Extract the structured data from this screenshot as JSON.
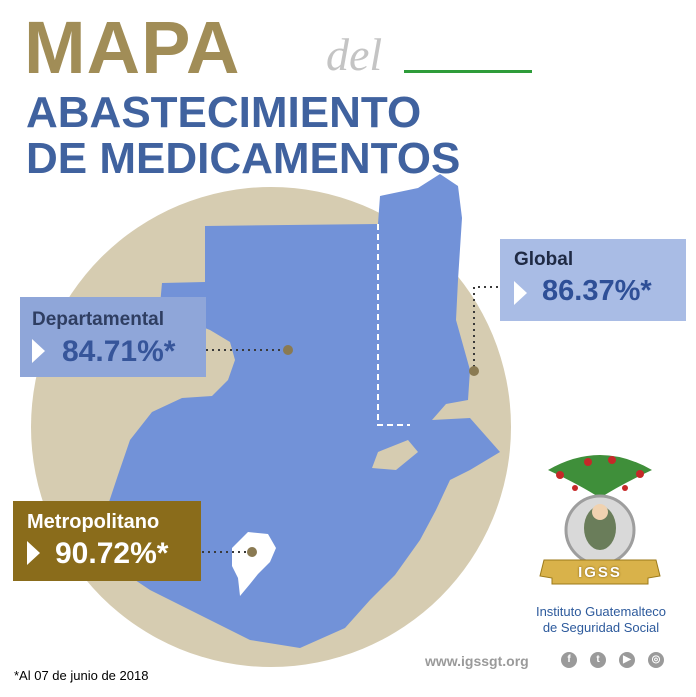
{
  "title": {
    "mapa": "MAPA",
    "del": "del",
    "line1": "ABASTECIMIENTO",
    "line2": "DE MEDICAMENTOS"
  },
  "panels": {
    "departamental": {
      "label": "Departamental",
      "value": "84.71%*"
    },
    "global": {
      "label": "Global",
      "value": "86.37%*"
    },
    "metropolitano": {
      "label": "Metropolitano",
      "value": "90.72%*"
    }
  },
  "logo": {
    "text": "IGSS",
    "caption_line1": "Instituto Guatemalteco",
    "caption_line2": "de Seguridad Social"
  },
  "footnote": "*Al 07 de junio de 2018",
  "website": "www.igssgt.org",
  "social_icons": [
    "facebook-icon",
    "twitter-icon",
    "youtube-icon",
    "instagram-icon"
  ],
  "colors": {
    "gold": "#a18d57",
    "blue": "#40629f",
    "map_blue": "#7292d8",
    "circle": "#d6ccb1",
    "brown_panel": "#8a6c1b",
    "green": "#2e9c3a"
  }
}
